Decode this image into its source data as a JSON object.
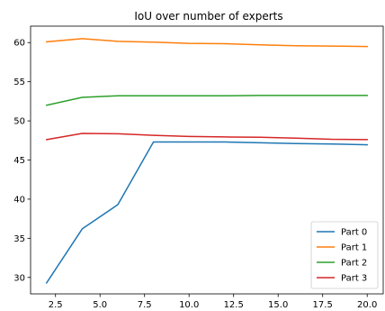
{
  "chart_data": {
    "type": "line",
    "title": "IoU over number of experts",
    "xlabel": "",
    "ylabel": "",
    "x": [
      2,
      4,
      6,
      8,
      10,
      12,
      14,
      16,
      18,
      20
    ],
    "xlim": [
      1.1,
      20.9
    ],
    "ylim": [
      27.9,
      62.1
    ],
    "xticks": [
      2.5,
      5.0,
      7.5,
      10.0,
      12.5,
      15.0,
      17.5,
      20.0
    ],
    "xtick_labels": [
      "2.5",
      "5.0",
      "7.5",
      "10.0",
      "12.5",
      "15.0",
      "17.5",
      "20.0"
    ],
    "yticks": [
      30,
      35,
      40,
      45,
      50,
      55,
      60
    ],
    "ytick_labels": [
      "30",
      "35",
      "40",
      "45",
      "50",
      "55",
      "60"
    ],
    "grid": false,
    "legend_position": "lower-right",
    "series": [
      {
        "name": "Part 0",
        "color": "#1f77b4",
        "values": [
          29.3,
          36.2,
          39.3,
          47.3,
          47.3,
          47.3,
          47.2,
          47.1,
          47.05,
          46.95
        ]
      },
      {
        "name": "Part 1",
        "color": "#ff7f0e",
        "values": [
          60.1,
          60.5,
          60.15,
          60.05,
          59.9,
          59.85,
          59.7,
          59.6,
          59.55,
          59.5
        ]
      },
      {
        "name": "Part 2",
        "color": "#2ca02c",
        "values": [
          52.0,
          53.0,
          53.2,
          53.2,
          53.2,
          53.2,
          53.25,
          53.25,
          53.25,
          53.25
        ]
      },
      {
        "name": "Part 3",
        "color": "#d62728",
        "values": [
          47.6,
          48.4,
          48.35,
          48.15,
          48.0,
          47.95,
          47.9,
          47.8,
          47.65,
          47.6
        ]
      }
    ]
  }
}
